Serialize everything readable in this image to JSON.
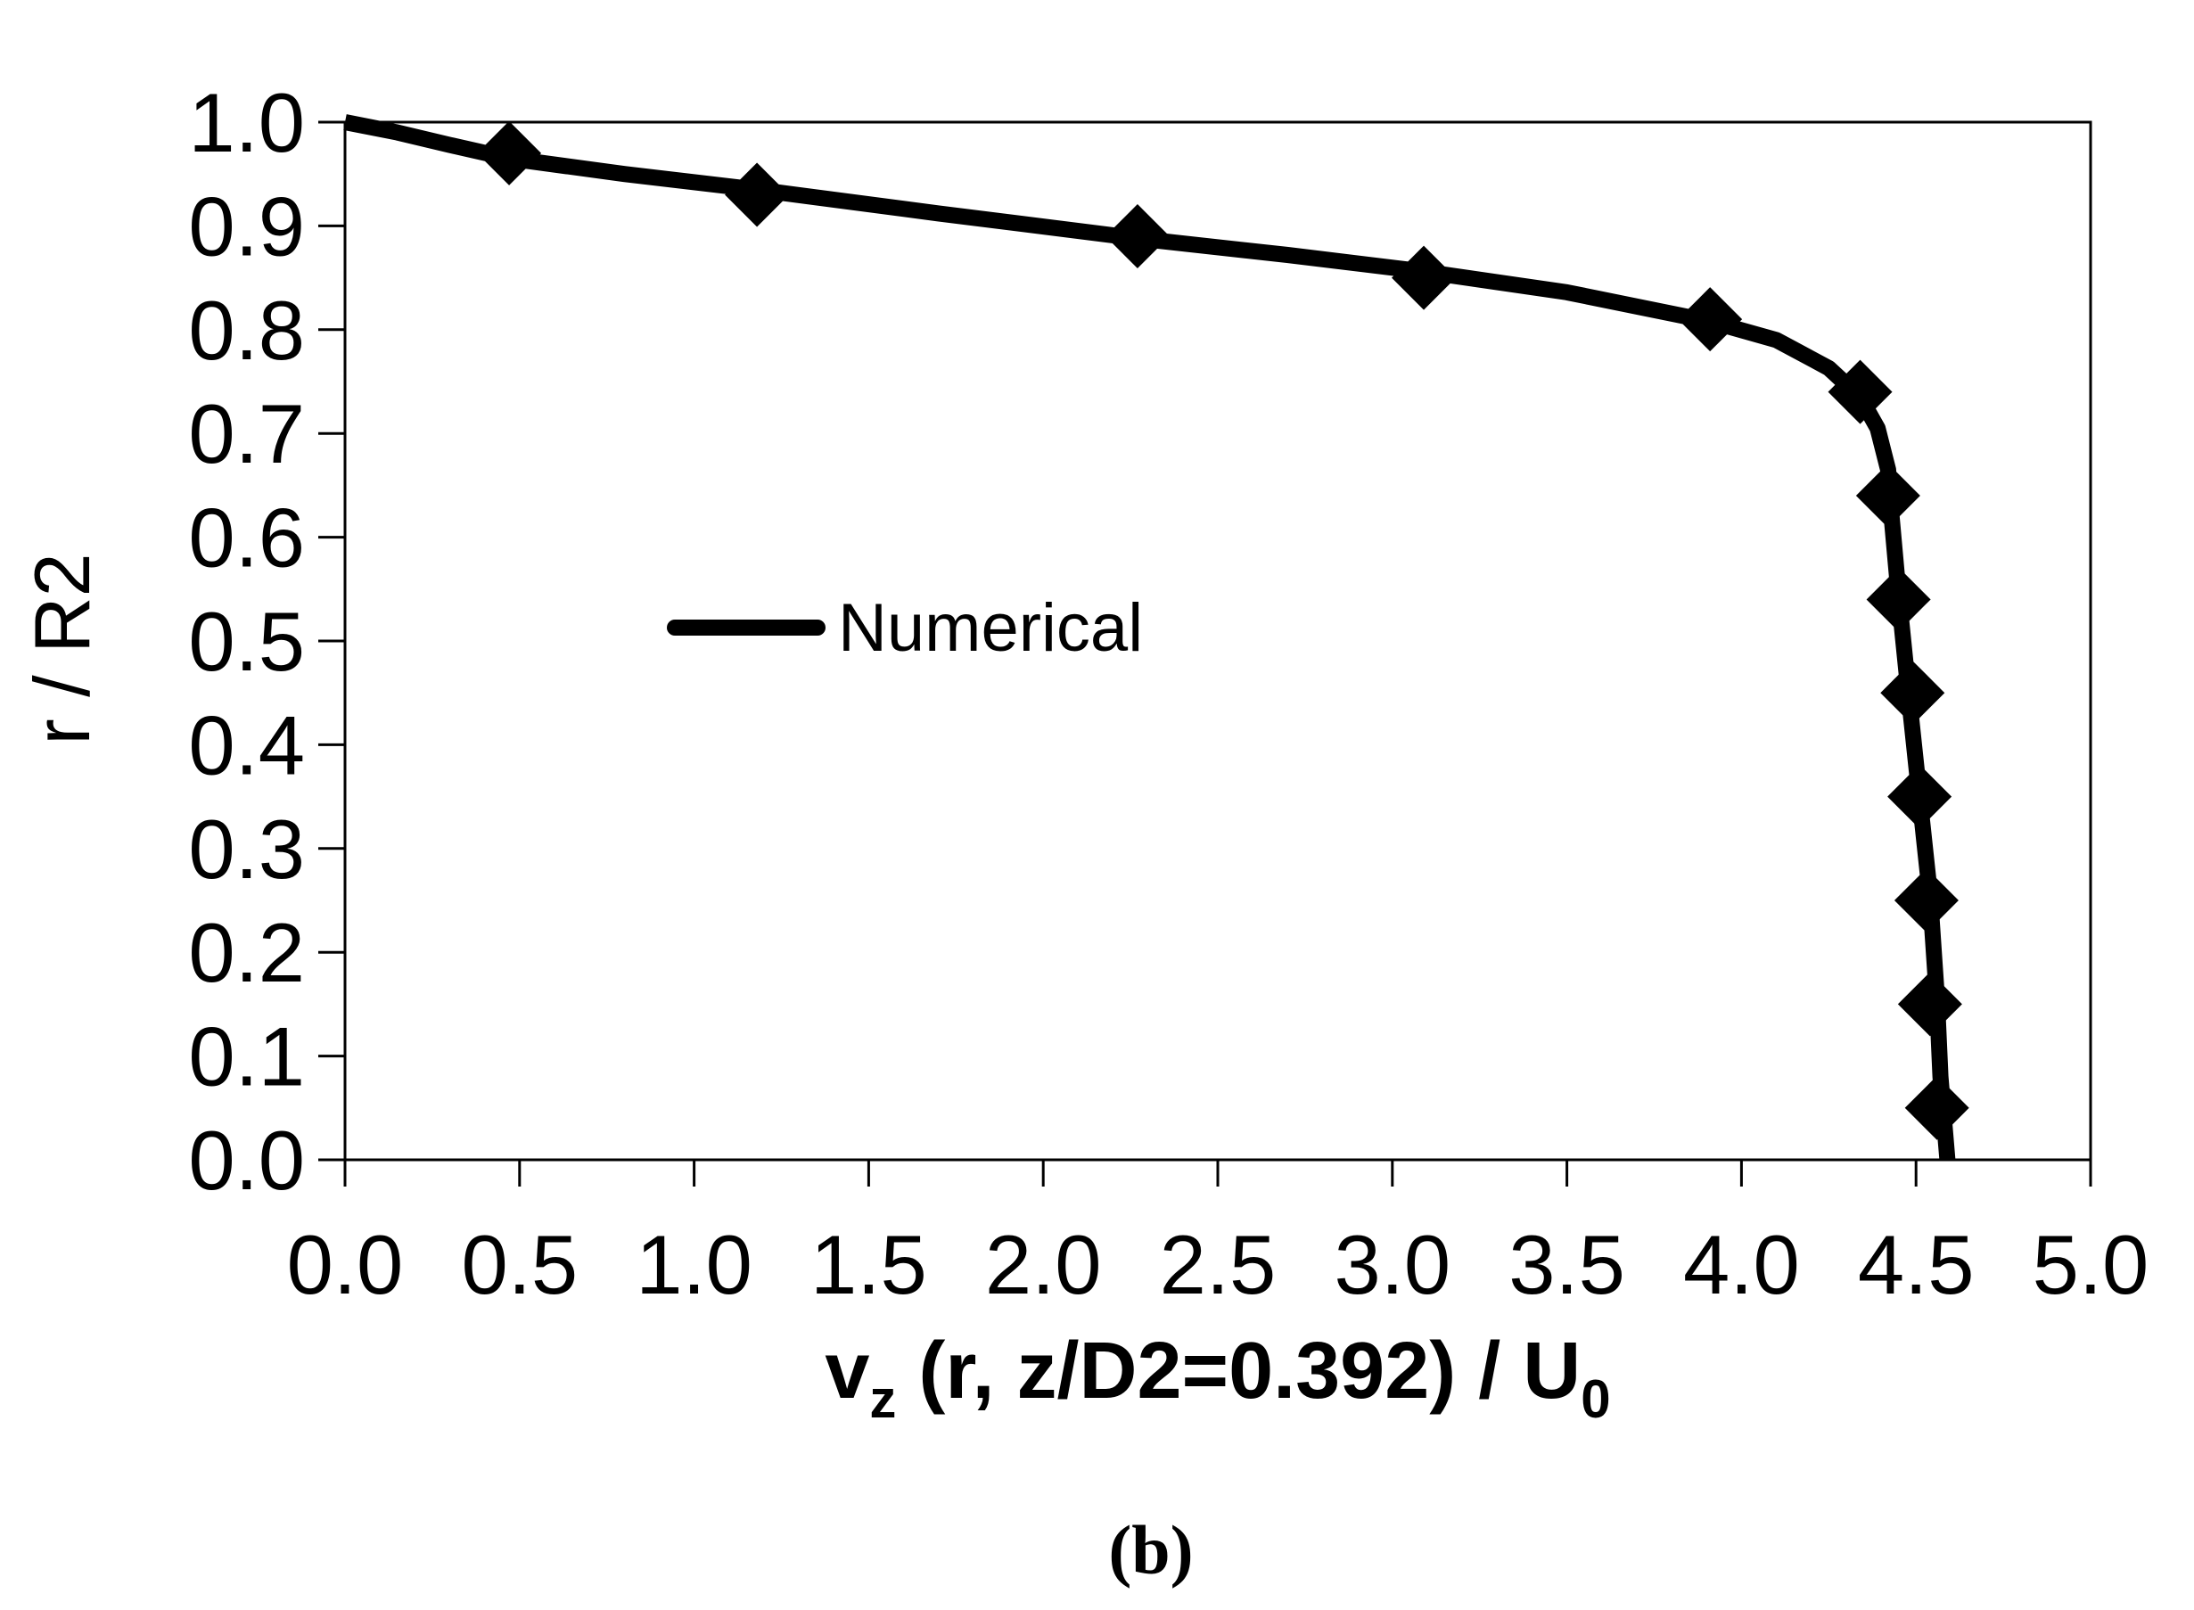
{
  "chart_data": {
    "type": "line",
    "x_axis": {
      "range": [
        0.0,
        5.0
      ],
      "ticks": [
        "0.0",
        "0.5",
        "1.0",
        "1.5",
        "2.0",
        "2.5",
        "3.0",
        "3.5",
        "4.0",
        "4.5",
        "5.0"
      ],
      "label_main": "v",
      "label_sub": "z",
      "label_mid": " (r, z/D2=0.392) / U",
      "label_end_sub": "0"
    },
    "y_axis": {
      "range": [
        0.0,
        1.0
      ],
      "ticks": [
        "0.0",
        "0.1",
        "0.2",
        "0.3",
        "0.4",
        "0.5",
        "0.6",
        "0.7",
        "0.8",
        "0.9",
        "1.0"
      ],
      "label": "r / R2"
    },
    "grid": false,
    "legend": {
      "placement": "center-left",
      "entries": [
        "Numerical"
      ]
    },
    "series": [
      {
        "name": "Numerical",
        "style": "line",
        "color": "#000000",
        "points": [
          [
            0.0,
            1.0
          ],
          [
            0.15,
            0.99
          ],
          [
            0.3,
            0.978
          ],
          [
            0.47,
            0.965
          ],
          [
            0.8,
            0.95
          ],
          [
            1.18,
            0.935
          ],
          [
            1.7,
            0.912
          ],
          [
            2.27,
            0.888
          ],
          [
            2.7,
            0.872
          ],
          [
            3.09,
            0.856
          ],
          [
            3.5,
            0.836
          ],
          [
            3.91,
            0.808
          ],
          [
            4.1,
            0.79
          ],
          [
            4.25,
            0.763
          ],
          [
            4.34,
            0.735
          ],
          [
            4.39,
            0.705
          ],
          [
            4.42,
            0.665
          ],
          [
            4.43,
            0.62
          ],
          [
            4.45,
            0.545
          ],
          [
            4.48,
            0.445
          ],
          [
            4.51,
            0.35
          ],
          [
            4.54,
            0.255
          ],
          [
            4.56,
            0.155
          ],
          [
            4.57,
            0.08
          ],
          [
            4.58,
            0.04
          ],
          [
            4.59,
            0.0
          ]
        ]
      },
      {
        "name": "",
        "style": "marker-diamond",
        "color": "#000000",
        "points": [
          [
            0.47,
            0.97
          ],
          [
            1.18,
            0.93
          ],
          [
            2.27,
            0.89
          ],
          [
            3.09,
            0.85
          ],
          [
            3.91,
            0.81
          ],
          [
            4.34,
            0.74
          ],
          [
            4.42,
            0.64
          ],
          [
            4.45,
            0.54
          ],
          [
            4.49,
            0.45
          ],
          [
            4.51,
            0.35
          ],
          [
            4.53,
            0.25
          ],
          [
            4.54,
            0.15
          ],
          [
            4.56,
            0.05
          ]
        ]
      }
    ]
  },
  "caption": "(b)"
}
